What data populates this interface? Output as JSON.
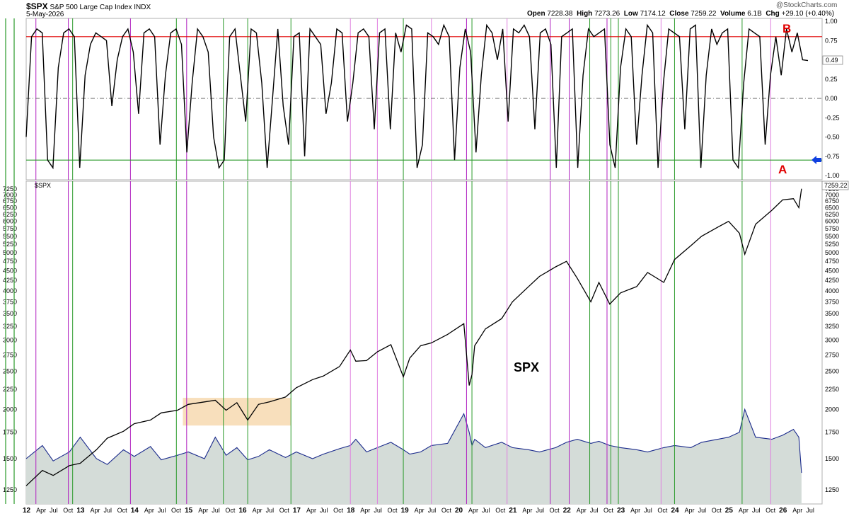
{
  "header": {
    "symbol": "$SPX",
    "name": "S&P 500 Large Cap Index",
    "exchange": "INDX",
    "date": "5-May-2026",
    "watermark": "@StockCharts.com",
    "open_label": "Open",
    "open": "7228.38",
    "high_label": "High",
    "high": "7273.26",
    "low_label": "Low",
    "low": "7174.12",
    "close_label": "Close",
    "close": "7259.22",
    "volume_label": "Volume",
    "volume": "6.1B",
    "chg_label": "Chg",
    "chg": "+29.10 (+0.40%)"
  },
  "chart_data": [
    {
      "type": "line",
      "panel": "oscillator",
      "ylim": [
        -1.0,
        1.0
      ],
      "yticks": [
        "1.00",
        "0.75",
        "0.50",
        "0.25",
        "0.00",
        "-0.25",
        "-0.50",
        "-0.75",
        "-1.00"
      ],
      "last_value_label": "0.49",
      "upper_band": 0.8,
      "lower_band": -0.8,
      "zero_line": 0,
      "annotations": [
        {
          "text": "B",
          "color": "#e00000"
        },
        {
          "text": "A",
          "color": "#e00000"
        }
      ],
      "arrow_color": "#1040e0",
      "series": [
        {
          "values": [
            -0.5,
            0.8,
            0.9,
            0.85,
            -0.8,
            -0.9,
            0.4,
            0.85,
            0.9,
            0.8,
            -0.9,
            0.3,
            0.7,
            0.85,
            0.8,
            0.75,
            -0.1,
            0.5,
            0.8,
            0.9,
            0.6,
            -0.2,
            0.85,
            0.9,
            0.8,
            -0.6,
            0.3,
            0.85,
            0.9,
            0.7,
            -0.7,
            0.2,
            0.9,
            0.8,
            0.6,
            -0.5,
            -0.9,
            -0.8,
            0.8,
            0.9,
            0.3,
            -0.3,
            0.9,
            0.85,
            0.2,
            -0.9,
            0.0,
            0.9,
            -0.1,
            -0.6,
            0.8,
            0.85,
            -0.75,
            0.9,
            0.8,
            0.7,
            -0.2,
            0.2,
            0.9,
            0.85,
            -0.3,
            0.2,
            0.85,
            0.9,
            0.8,
            -0.4,
            0.85,
            0.9,
            -0.4,
            0.85,
            0.6,
            0.95,
            0.9,
            -0.9,
            -0.6,
            0.85,
            0.8,
            0.7,
            0.95,
            0.8,
            -0.8,
            0.4,
            0.9,
            0.6,
            -0.7,
            0.3,
            0.95,
            0.85,
            0.5,
            0.9,
            -0.3,
            0.9,
            0.85,
            0.95,
            0.8,
            -0.4,
            0.85,
            0.9,
            0.7,
            -0.9,
            0.8,
            0.85,
            0.9,
            -0.9,
            0.3,
            0.9,
            0.8,
            0.85,
            0.9,
            -0.6,
            -0.9,
            0.4,
            0.9,
            0.8,
            -0.6,
            0.3,
            0.95,
            0.85,
            -0.9,
            0.2,
            0.9,
            0.85,
            0.8,
            -0.4,
            0.9,
            0.95,
            -0.9,
            0.3,
            0.9,
            0.7,
            0.85,
            0.9,
            -0.8,
            -0.9,
            0.2,
            0.9,
            0.85,
            0.8,
            -0.6,
            0.3,
            0.8,
            0.3,
            0.9,
            0.6,
            0.85,
            0.5,
            0.49
          ]
        }
      ]
    },
    {
      "type": "line",
      "panel": "price",
      "title": "$SPX",
      "last_value_label": "7259.22",
      "ylim": [
        1180,
        7400
      ],
      "log_scale": true,
      "yticks": [
        "7250",
        "7000",
        "6750",
        "6500",
        "6250",
        "6000",
        "5750",
        "5500",
        "5250",
        "5000",
        "4750",
        "4500",
        "4250",
        "4000",
        "3750",
        "3500",
        "3250",
        "3000",
        "2750",
        "2500",
        "2250",
        "2000",
        "1750",
        "1500",
        "1250"
      ],
      "xticks": [
        "12",
        "Apr",
        "Jul",
        "Oct",
        "13",
        "Apr",
        "Jul",
        "Oct",
        "14",
        "Apr",
        "Jul",
        "Oct",
        "15",
        "Apr",
        "Jul",
        "Oct",
        "16",
        "Apr",
        "Jul",
        "Oct",
        "17",
        "Apr",
        "Jul",
        "Oct",
        "18",
        "Apr",
        "Jul",
        "Oct",
        "19",
        "Apr",
        "Jul",
        "Oct",
        "20",
        "Apr",
        "Jul",
        "Oct",
        "21",
        "Apr",
        "Jul",
        "Oct",
        "22",
        "Apr",
        "Jul",
        "Oct",
        "23",
        "Apr",
        "Jul",
        "Oct",
        "24",
        "Apr",
        "Jul",
        "Oct",
        "25",
        "Apr",
        "Jul",
        "Oct",
        "26",
        "Apr",
        "Jul"
      ],
      "annotations": [
        {
          "text": "SPX"
        }
      ],
      "highlight_box": {
        "from_date": 2014.9,
        "to_date": 2016.9,
        "from_price": 1820,
        "to_price": 2140,
        "color": "#f7d9b0"
      },
      "series": [
        {
          "name": "SPX",
          "x": [
            2012.0,
            2012.3,
            2012.5,
            2012.8,
            2013.0,
            2013.3,
            2013.5,
            2013.8,
            2014.0,
            2014.3,
            2014.5,
            2014.8,
            2015.0,
            2015.3,
            2015.5,
            2015.7,
            2015.9,
            2016.1,
            2016.3,
            2016.5,
            2016.8,
            2017.0,
            2017.3,
            2017.5,
            2017.8,
            2018.0,
            2018.1,
            2018.3,
            2018.5,
            2018.75,
            2018.98,
            2019.1,
            2019.3,
            2019.5,
            2019.8,
            2020.1,
            2020.2,
            2020.25,
            2020.3,
            2020.5,
            2020.8,
            2021.0,
            2021.3,
            2021.5,
            2021.8,
            2022.0,
            2022.2,
            2022.45,
            2022.6,
            2022.8,
            2023.0,
            2023.3,
            2023.5,
            2023.8,
            2024.0,
            2024.3,
            2024.5,
            2024.8,
            2025.0,
            2025.2,
            2025.3,
            2025.5,
            2025.8,
            2026.0,
            2026.2,
            2026.3,
            2026.35
          ],
          "values": [
            1280,
            1400,
            1360,
            1440,
            1460,
            1580,
            1690,
            1760,
            1840,
            1880,
            1960,
            1990,
            2060,
            2090,
            2110,
            1990,
            2080,
            1880,
            2060,
            2090,
            2150,
            2270,
            2380,
            2430,
            2570,
            2830,
            2650,
            2660,
            2800,
            2920,
            2420,
            2700,
            2900,
            2950,
            3100,
            3300,
            2300,
            2450,
            2900,
            3200,
            3400,
            3750,
            4100,
            4350,
            4600,
            4750,
            4300,
            3750,
            4200,
            3700,
            3950,
            4100,
            4450,
            4200,
            4800,
            5200,
            5500,
            5800,
            6000,
            5600,
            4950,
            5900,
            6400,
            6800,
            6850,
            6500,
            7259
          ]
        },
        {
          "name": "Volume",
          "values": [
            1500,
            1620,
            1480,
            1560,
            1700,
            1500,
            1450,
            1580,
            1520,
            1610,
            1490,
            1530,
            1560,
            1500,
            1700,
            1530,
            1600,
            1490,
            1520,
            1580,
            1510,
            1560,
            1500,
            1540,
            1590,
            1620,
            1680,
            1560,
            1600,
            1650,
            1580,
            1540,
            1560,
            1620,
            1640,
            1950,
            1750,
            1620,
            1680,
            1600,
            1650,
            1600,
            1580,
            1560,
            1600,
            1650,
            1680,
            1640,
            1660,
            1620,
            1600,
            1580,
            1560,
            1600,
            1620,
            1600,
            1650,
            1680,
            1700,
            1750,
            2000,
            1700,
            1680,
            1720,
            1780,
            1700,
            1380
          ]
        }
      ]
    }
  ]
}
